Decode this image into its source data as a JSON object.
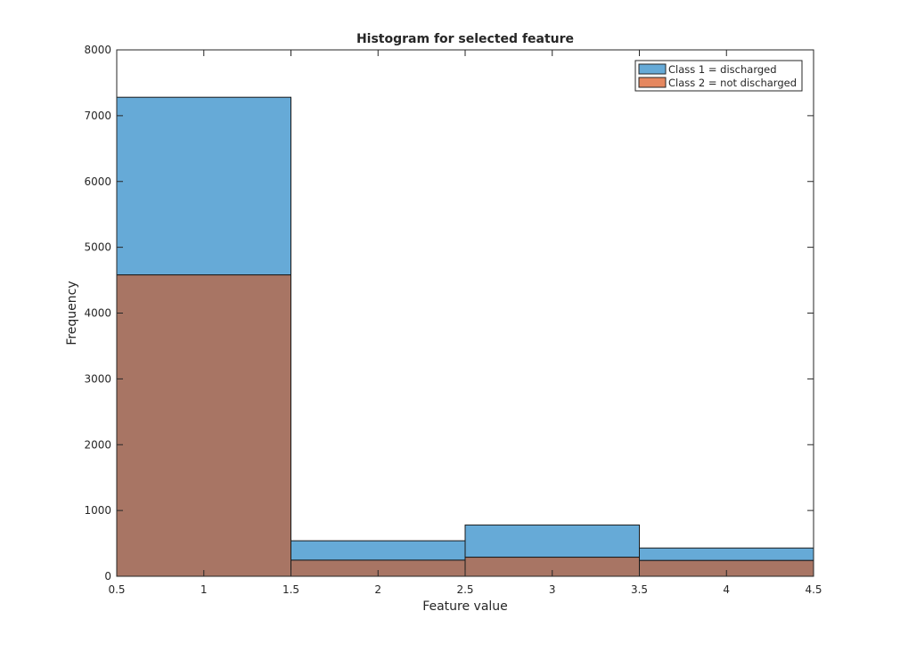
{
  "chart_data": {
    "type": "bar",
    "title": "Histogram for selected feature",
    "xlabel": "Feature value",
    "ylabel": "Frequency",
    "xlim": [
      0.5,
      4.5
    ],
    "ylim": [
      0,
      8000
    ],
    "xticks": [
      "0.5",
      "1",
      "1.5",
      "2",
      "2.5",
      "3",
      "3.5",
      "4",
      "4.5"
    ],
    "yticks": [
      "0",
      "1000",
      "2000",
      "3000",
      "4000",
      "5000",
      "6000",
      "7000",
      "8000"
    ],
    "bin_edges": [
      0.5,
      1.5,
      2.5,
      3.5,
      4.5
    ],
    "grid": false,
    "legend_position": "top-right",
    "series": [
      {
        "name": "Class 1 = discharged",
        "color": "#66aad7",
        "values": [
          7280,
          540,
          780,
          430
        ]
      },
      {
        "name": "Class 2 = not discharged",
        "color": "#e5875f",
        "overlap_color": "#a87564",
        "values": [
          4580,
          245,
          290,
          240
        ]
      }
    ]
  }
}
